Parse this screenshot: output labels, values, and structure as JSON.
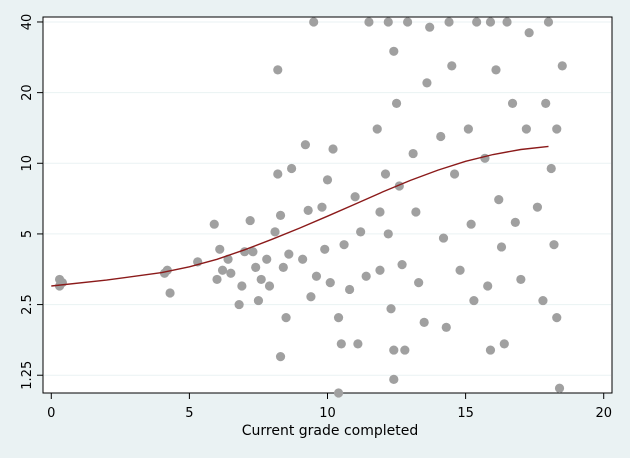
{
  "chart_data": {
    "type": "scatter",
    "xlabel": "Current grade completed",
    "ylabel": "",
    "y_scale": "log2",
    "xlim": [
      -0.3,
      20.3
    ],
    "ylim": [
      1.05,
      42
    ],
    "x_ticks": [
      0,
      5,
      10,
      15,
      20
    ],
    "y_ticks": [
      1.25,
      2.5,
      5,
      10,
      20,
      40
    ],
    "y_tick_labels": [
      "1.25",
      "2.5",
      "5",
      "10",
      "20",
      "40"
    ],
    "grid": "y",
    "legend": "none",
    "colors": {
      "points": "#a0a0a0",
      "fit_line": "#8b1a1a",
      "plot_bg": "#ffffff",
      "page_bg": "#eaf2f3",
      "grid": "#eaf2f3"
    },
    "series": [
      {
        "type": "scatter",
        "points": [
          [
            0.3,
            3.0
          ],
          [
            0.3,
            3.2
          ],
          [
            0.4,
            3.1
          ],
          [
            4.1,
            3.4
          ],
          [
            4.2,
            3.5
          ],
          [
            4.3,
            2.8
          ],
          [
            5.3,
            3.8
          ],
          [
            5.9,
            5.5
          ],
          [
            6.0,
            3.2
          ],
          [
            6.1,
            4.3
          ],
          [
            6.2,
            3.5
          ],
          [
            6.4,
            3.9
          ],
          [
            6.5,
            3.4
          ],
          [
            6.8,
            2.5
          ],
          [
            6.9,
            3.0
          ],
          [
            7.0,
            4.2
          ],
          [
            7.2,
            5.7
          ],
          [
            7.3,
            4.2
          ],
          [
            7.4,
            3.6
          ],
          [
            7.5,
            2.6
          ],
          [
            7.6,
            3.2
          ],
          [
            7.8,
            3.9
          ],
          [
            7.9,
            3.0
          ],
          [
            8.1,
            5.1
          ],
          [
            8.2,
            9.0
          ],
          [
            8.3,
            6.0
          ],
          [
            8.3,
            1.5
          ],
          [
            8.4,
            3.6
          ],
          [
            8.5,
            2.2
          ],
          [
            8.2,
            25.0
          ],
          [
            8.6,
            4.1
          ],
          [
            8.7,
            9.5
          ],
          [
            9.1,
            3.9
          ],
          [
            9.2,
            12.0
          ],
          [
            9.3,
            6.3
          ],
          [
            9.4,
            2.7
          ],
          [
            9.6,
            3.3
          ],
          [
            9.5,
            40.0
          ],
          [
            9.8,
            6.5
          ],
          [
            9.9,
            4.3
          ],
          [
            10.0,
            8.5
          ],
          [
            10.1,
            3.1
          ],
          [
            10.2,
            11.5
          ],
          [
            10.4,
            2.2
          ],
          [
            10.4,
            1.05
          ],
          [
            10.5,
            1.7
          ],
          [
            10.6,
            4.5
          ],
          [
            10.8,
            2.9
          ],
          [
            11.0,
            7.2
          ],
          [
            11.2,
            5.1
          ],
          [
            11.4,
            3.3
          ],
          [
            11.1,
            1.7
          ],
          [
            11.5,
            40.0
          ],
          [
            11.8,
            14.0
          ],
          [
            11.9,
            6.2
          ],
          [
            11.9,
            3.5
          ],
          [
            12.1,
            9.0
          ],
          [
            12.2,
            5.0
          ],
          [
            12.3,
            2.4
          ],
          [
            12.4,
            1.6
          ],
          [
            12.4,
            1.2
          ],
          [
            12.2,
            40.0
          ],
          [
            12.4,
            30.0
          ],
          [
            12.5,
            18.0
          ],
          [
            12.6,
            8.0
          ],
          [
            12.7,
            3.7
          ],
          [
            12.8,
            1.6
          ],
          [
            12.9,
            40.0
          ],
          [
            13.1,
            11.0
          ],
          [
            13.2,
            6.2
          ],
          [
            13.3,
            3.1
          ],
          [
            13.5,
            2.1
          ],
          [
            13.6,
            22.0
          ],
          [
            13.7,
            38.0
          ],
          [
            14.1,
            13.0
          ],
          [
            14.2,
            4.8
          ],
          [
            14.3,
            2.0
          ],
          [
            14.4,
            40.0
          ],
          [
            14.5,
            26.0
          ],
          [
            14.6,
            9.0
          ],
          [
            14.8,
            3.5
          ],
          [
            15.1,
            14.0
          ],
          [
            15.2,
            5.5
          ],
          [
            15.3,
            2.6
          ],
          [
            15.4,
            40.0
          ],
          [
            15.7,
            10.5
          ],
          [
            15.8,
            3.0
          ],
          [
            15.9,
            1.6
          ],
          [
            15.9,
            40.0
          ],
          [
            16.1,
            25.0
          ],
          [
            16.2,
            7.0
          ],
          [
            16.3,
            4.4
          ],
          [
            16.4,
            1.7
          ],
          [
            16.5,
            40.0
          ],
          [
            16.7,
            18.0
          ],
          [
            16.8,
            5.6
          ],
          [
            17.0,
            3.2
          ],
          [
            17.2,
            14.0
          ],
          [
            17.3,
            36.0
          ],
          [
            17.6,
            6.5
          ],
          [
            17.8,
            2.6
          ],
          [
            17.9,
            18.0
          ],
          [
            18.0,
            40.0
          ],
          [
            18.1,
            9.5
          ],
          [
            18.2,
            4.5
          ],
          [
            18.3,
            2.2
          ],
          [
            18.4,
            1.1
          ],
          [
            18.3,
            14.0
          ],
          [
            18.5,
            26.0
          ]
        ]
      },
      {
        "type": "line",
        "points": [
          [
            0.0,
            3.0
          ],
          [
            2.0,
            3.18
          ],
          [
            4.0,
            3.42
          ],
          [
            5.0,
            3.62
          ],
          [
            6.0,
            3.9
          ],
          [
            7.0,
            4.28
          ],
          [
            8.0,
            4.75
          ],
          [
            9.0,
            5.3
          ],
          [
            10.0,
            5.95
          ],
          [
            11.0,
            6.7
          ],
          [
            12.0,
            7.55
          ],
          [
            13.0,
            8.45
          ],
          [
            14.0,
            9.35
          ],
          [
            15.0,
            10.2
          ],
          [
            16.0,
            10.9
          ],
          [
            17.0,
            11.45
          ],
          [
            18.0,
            11.8
          ]
        ]
      }
    ]
  }
}
